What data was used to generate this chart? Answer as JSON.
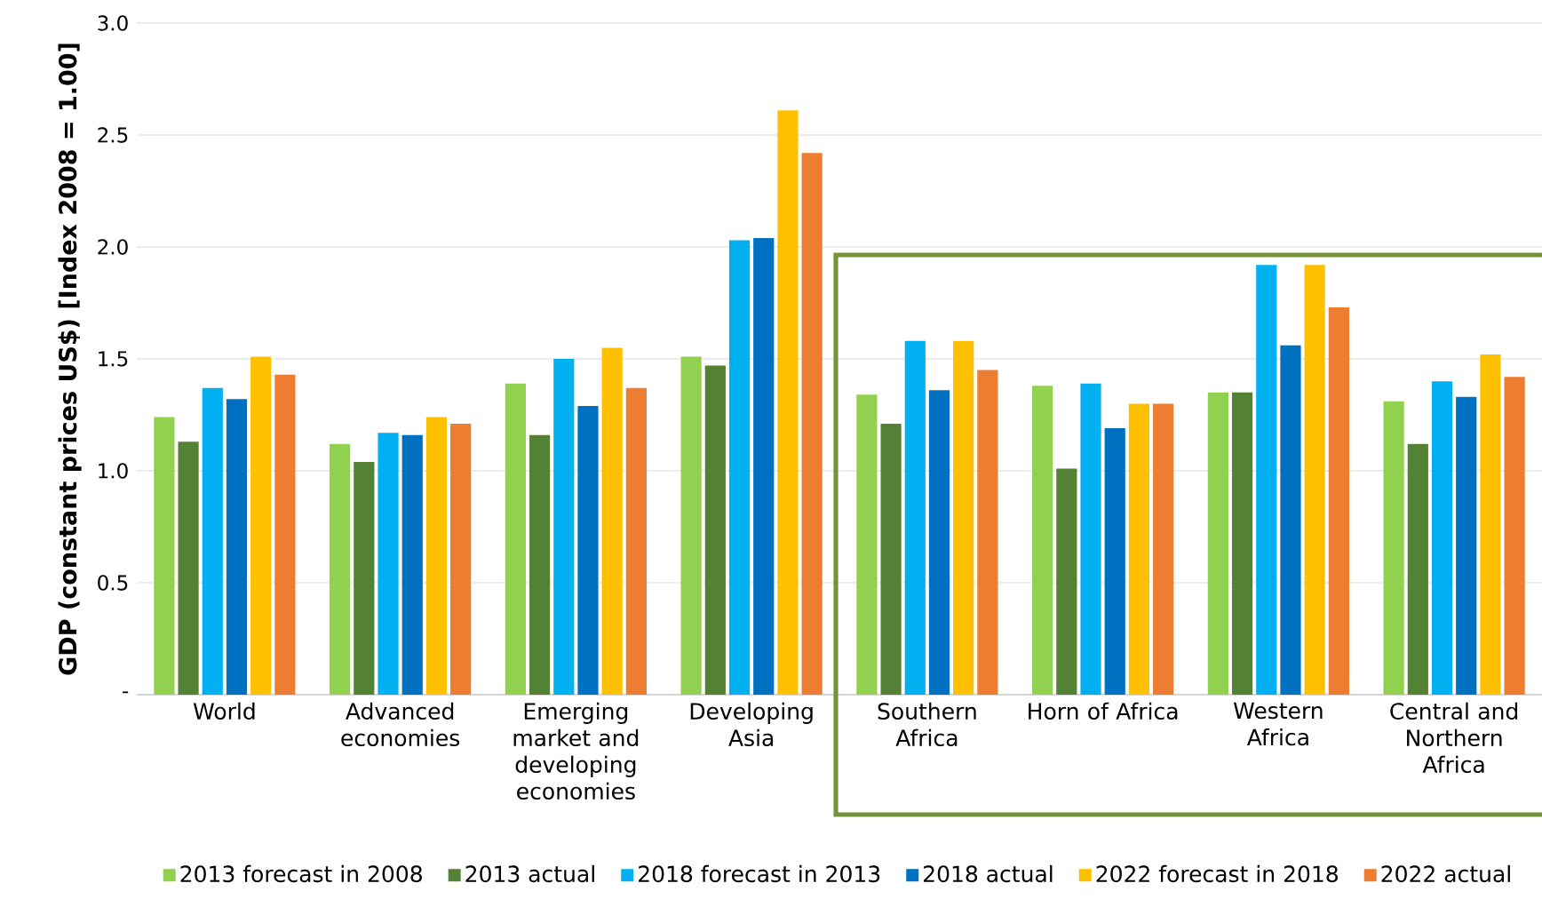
{
  "chart_data": {
    "type": "bar",
    "ylabel": "GDP (constant prices US$) [Index 2008 = 1.00]",
    "categories": [
      "World",
      "Advanced economies",
      "Emerging market and developing economies",
      "Developing Asia",
      "Southern Africa",
      "Horn of Africa",
      "Western Africa",
      "Central and Northern Africa"
    ],
    "series": [
      {
        "name": "2013 forecast in 2008",
        "color": "#92d050",
        "values": [
          1.24,
          1.12,
          1.39,
          1.51,
          1.34,
          1.38,
          1.35,
          1.31
        ]
      },
      {
        "name": "2013 actual",
        "color": "#548235",
        "values": [
          1.13,
          1.04,
          1.16,
          1.47,
          1.21,
          1.01,
          1.35,
          1.12
        ]
      },
      {
        "name": "2018 forecast in 2013",
        "color": "#00b0f0",
        "values": [
          1.37,
          1.17,
          1.5,
          2.03,
          1.58,
          1.39,
          1.92,
          1.4
        ]
      },
      {
        "name": "2018 actual",
        "color": "#0070c0",
        "values": [
          1.32,
          1.16,
          1.29,
          2.04,
          1.36,
          1.19,
          1.56,
          1.33
        ]
      },
      {
        "name": "2022 forecast in 2018",
        "color": "#ffc000",
        "values": [
          1.51,
          1.24,
          1.55,
          2.61,
          1.58,
          1.3,
          1.92,
          1.52
        ]
      },
      {
        "name": "2022 actual",
        "color": "#ed7d31",
        "values": [
          1.43,
          1.21,
          1.37,
          2.42,
          1.45,
          1.3,
          1.73,
          1.42
        ]
      }
    ],
    "ylim": [
      0,
      3.0
    ],
    "yticks": [
      {
        "value": 0,
        "label": "-"
      },
      {
        "value": 0.5,
        "label": "0.5"
      },
      {
        "value": 1.0,
        "label": "1.0"
      },
      {
        "value": 1.5,
        "label": "1.5"
      },
      {
        "value": 2.0,
        "label": "2.0"
      },
      {
        "value": 2.5,
        "label": "2.5"
      },
      {
        "value": 3.0,
        "label": "3.0"
      }
    ],
    "grid": "y",
    "legend": "bottom"
  }
}
